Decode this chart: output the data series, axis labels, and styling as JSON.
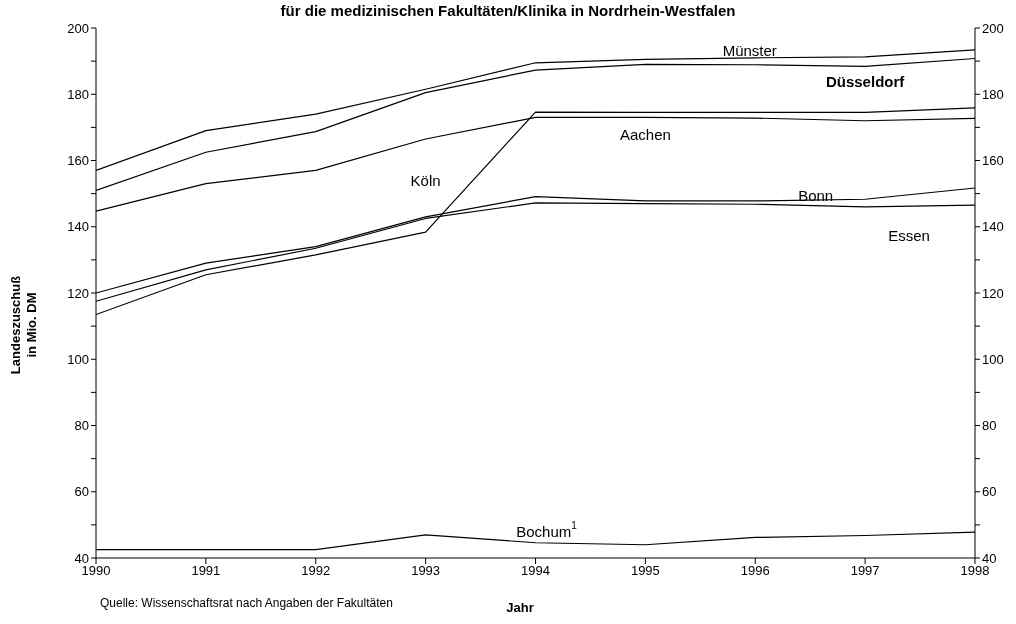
{
  "chart_data": {
    "type": "line",
    "title": "für die medizinischen Fakultäten/Klinika in Nordrhein-Westfalen",
    "xlabel": "Jahr",
    "ylabel": "Landeszuschuß\nin Mio. DM",
    "x": [
      1990,
      1991,
      1992,
      1993,
      1994,
      1995,
      1996,
      1997,
      1998
    ],
    "xlim": [
      1990,
      1998
    ],
    "xticks": [
      1990,
      1991,
      1992,
      1993,
      1994,
      1995,
      1996,
      1997,
      1998
    ],
    "ylim": [
      40,
      200
    ],
    "yticks": [
      40,
      {
        "value": 50,
        "label": null
      },
      60,
      {
        "value": 70,
        "label": null
      },
      80,
      {
        "value": 90,
        "label": null
      },
      100,
      {
        "value": 110,
        "label": null
      },
      120,
      {
        "value": 130,
        "label": null
      },
      140,
      {
        "value": 150,
        "label": null
      },
      160,
      {
        "value": 170,
        "label": null
      },
      180,
      {
        "value": 190,
        "label": null
      },
      200
    ],
    "y2lim": [
      40,
      200
    ],
    "y2ticks": [
      40,
      {
        "value": 50,
        "label": null
      },
      60,
      {
        "value": 70,
        "label": null
      },
      80,
      {
        "value": 90,
        "label": null
      },
      100,
      {
        "value": 110,
        "label": null
      },
      120,
      {
        "value": 130,
        "label": null
      },
      140,
      {
        "value": 150,
        "label": null
      },
      160,
      {
        "value": 170,
        "label": null
      },
      180,
      {
        "value": 190,
        "label": null
      },
      200
    ],
    "series": [
      {
        "name": "Münster",
        "color": "#000000",
        "values": [
          157,
          169,
          174,
          181.5,
          189.5,
          190.5,
          191,
          191.3,
          193.4
        ]
      },
      {
        "name": "Düsseldorf",
        "color": "#000000",
        "values": [
          151,
          162.5,
          168.7,
          180.5,
          187.3,
          189,
          188.9,
          188.4,
          190.8
        ]
      },
      {
        "name": "Aachen",
        "color": "#000000",
        "values": [
          144.7,
          153,
          157,
          166.5,
          173,
          173,
          172.8,
          172,
          172.7
        ]
      },
      {
        "name": "Köln",
        "color": "#000000",
        "values": [
          113.5,
          125.5,
          131.5,
          138.4,
          174.6,
          174.5,
          174.5,
          174.5,
          175.9
        ]
      },
      {
        "name": "Bonn",
        "color": "#000000",
        "values": [
          120,
          129,
          134,
          143,
          149.1,
          147.8,
          147.8,
          148.3,
          151.7
        ]
      },
      {
        "name": "Essen",
        "color": "#000000",
        "values": [
          117.5,
          127,
          133.5,
          142.5,
          147.2,
          147,
          146.8,
          146,
          146.5
        ]
      },
      {
        "name": "Bochum$^{1}$",
        "color": "#000000",
        "values": [
          42.5,
          42.5,
          42.5,
          47,
          44.6,
          44,
          46.2,
          46.8,
          47.8
        ]
      }
    ],
    "annotations": [
      "Quelle: Wissenschaftsrat nach Angaben der Fakultäten"
    ]
  }
}
